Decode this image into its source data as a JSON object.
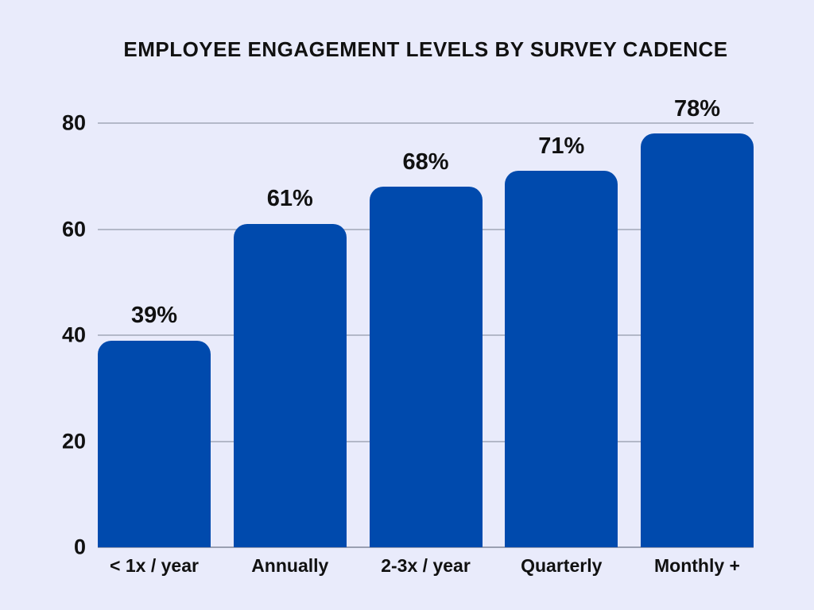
{
  "chart_data": {
    "type": "bar",
    "title": "EMPLOYEE ENGAGEMENT LEVELS BY SURVEY CADENCE",
    "categories": [
      "< 1x / year",
      "Annually",
      "2-3x / year",
      "Quarterly",
      "Monthly +"
    ],
    "values": [
      39,
      61,
      68,
      71,
      78
    ],
    "value_labels": [
      "39%",
      "61%",
      "68%",
      "71%",
      "78%"
    ],
    "xlabel": "",
    "ylabel": "",
    "ylim": [
      0,
      80
    ],
    "yticks": [
      "80",
      "60",
      "40",
      "20",
      "0"
    ],
    "grid": true,
    "legend": "none",
    "colors": {
      "bar": "#004aad",
      "background": "#e9ebfb",
      "gridline": "#b3b8c8",
      "baseline": "#9aa0b2",
      "text": "#111111"
    }
  }
}
